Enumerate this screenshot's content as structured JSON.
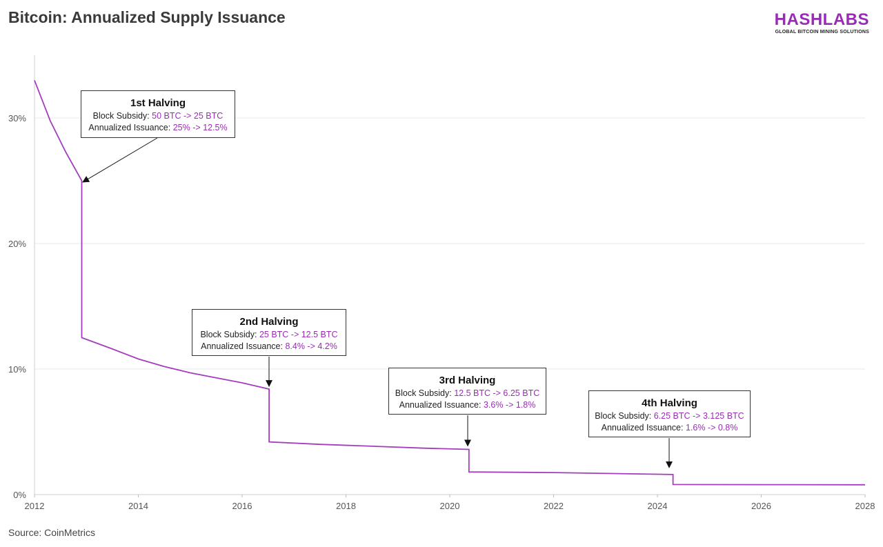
{
  "header": {
    "title": "Bitcoin: Annualized Supply Issuance",
    "brand": "HASHLABS",
    "brand_tagline": "GLOBAL BITCOIN MINING SOLUTIONS",
    "brand_color": "#9a2bb5"
  },
  "footer": {
    "source": "Source: CoinMetrics"
  },
  "chart_data": {
    "type": "line",
    "title": "Bitcoin: Annualized Supply Issuance",
    "xlabel": "",
    "ylabel": "",
    "xlim": [
      2012,
      2028
    ],
    "ylim": [
      0,
      35
    ],
    "x_ticks": [
      "2012",
      "2014",
      "2016",
      "2018",
      "2020",
      "2022",
      "2024",
      "2026",
      "2028"
    ],
    "y_ticks": [
      "0%",
      "10%",
      "20%",
      "30%"
    ],
    "grid": true,
    "line_color": "#a43bc0",
    "series": [
      {
        "name": "",
        "points": [
          [
            2012.0,
            33.0
          ],
          [
            2012.3,
            29.8
          ],
          [
            2012.6,
            27.3
          ],
          [
            2012.91,
            25.0
          ],
          [
            2012.91,
            12.5
          ],
          [
            2013.5,
            11.6
          ],
          [
            2014.0,
            10.8
          ],
          [
            2014.5,
            10.2
          ],
          [
            2015.0,
            9.7
          ],
          [
            2015.5,
            9.3
          ],
          [
            2016.0,
            8.9
          ],
          [
            2016.52,
            8.4
          ],
          [
            2016.52,
            4.2
          ],
          [
            2017.5,
            4.0
          ],
          [
            2018.5,
            3.85
          ],
          [
            2019.5,
            3.7
          ],
          [
            2020.37,
            3.6
          ],
          [
            2020.37,
            1.8
          ],
          [
            2022.0,
            1.75
          ],
          [
            2024.3,
            1.6
          ],
          [
            2024.3,
            0.8
          ],
          [
            2026.0,
            0.79
          ],
          [
            2028.0,
            0.78
          ]
        ]
      }
    ],
    "annotations": [
      {
        "title": "1st Halving",
        "subsidy_label": "Block Subsidy: ",
        "subsidy_value": "50 BTC -> 25 BTC",
        "issuance_label": "Annualized Issuance: ",
        "issuance_value": "25% -> 12.5%"
      },
      {
        "title": "2nd Halving",
        "subsidy_label": "Block Subsidy: ",
        "subsidy_value": "25 BTC -> 12.5 BTC",
        "issuance_label": "Annualized Issuance: ",
        "issuance_value": "8.4% -> 4.2%"
      },
      {
        "title": "3rd Halving",
        "subsidy_label": "Block Subsidy: ",
        "subsidy_value": "12.5 BTC -> 6.25 BTC",
        "issuance_label": "Annualized Issuance: ",
        "issuance_value": "3.6% -> 1.8%"
      },
      {
        "title": "4th Halving",
        "subsidy_label": "Block Subsidy: ",
        "subsidy_value": "6.25 BTC -> 3.125 BTC",
        "issuance_label": "Annualized Issuance: ",
        "issuance_value": "1.6% -> 0.8%"
      }
    ]
  }
}
